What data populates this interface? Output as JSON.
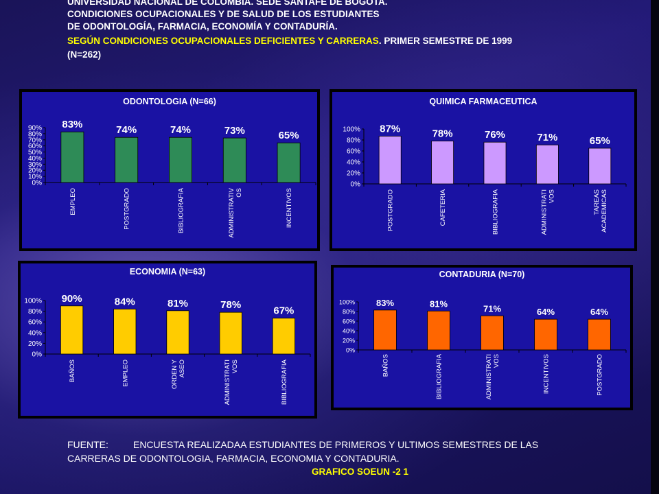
{
  "header": {
    "line1": "UNIVERSIDAD NACIONAL DE COLOMBIA. SEDE SANTAFE DE BOGOTA.",
    "line2": "CONDICIONES OCUPACIONALES Y DE SALUD DE LOS ESTUDIANTES",
    "line3": "DE ODONTOLOGÍA, FARMACIA, ECONOMÍA Y CONTADURÍA."
  },
  "subtitle": {
    "part1": "SEGÚN  CONDICIONES OCUPACIONALES DEFICIENTES Y CARRERAS",
    "part2": ". PRIMER SEMESTRE DE 1999",
    "part3": "(N=262)"
  },
  "footer": {
    "label": "FUENTE:",
    "text1": "ENCUESTA REALIZADAA ESTUDIANTES DE PRIMEROS Y ULTIMOS SEMESTRES DE LAS",
    "text2": "CARRERAS DE ODONTOLOGIA, FARMACIA, ECONOMIA Y CONTADURIA.",
    "figure": "GRAFICO SOEUN -2 1"
  },
  "colors": {
    "panel_bg": "#1a12a3",
    "odontologia": "#2e8b57",
    "quimica": "#cc99ff",
    "economia": "#ffcc00",
    "contaduria": "#ff6600"
  },
  "chart_data": [
    {
      "type": "bar",
      "title": "ODONTOLOGIA (N=66)",
      "categories": [
        [
          "EMPLEO"
        ],
        [
          "POSTGRADO"
        ],
        [
          "BIBLIOGRAFIA"
        ],
        [
          "ADMINISTRATIV",
          "OS"
        ],
        [
          "INCENTIVOS"
        ]
      ],
      "values": [
        83,
        74,
        74,
        73,
        65
      ],
      "data_labels": [
        "83%",
        "74%",
        "74%",
        "73%",
        "65%"
      ],
      "yticks": [
        "0%",
        "10%",
        "20%",
        "30%",
        "40%",
        "50%",
        "60%",
        "70%",
        "80%",
        "90%"
      ],
      "ylim": [
        0,
        90
      ],
      "color_key": "odontologia"
    },
    {
      "type": "bar",
      "title": "QUIMICA FARMACEUTICA",
      "categories": [
        [
          "POSTGRADO"
        ],
        [
          "CAFETERIA"
        ],
        [
          "BIBLIOGRAFIA"
        ],
        [
          "ADMINISTRATI",
          "VOS"
        ],
        [
          "TAREAS",
          "ACADEMICAS"
        ]
      ],
      "values": [
        87,
        78,
        76,
        71,
        65
      ],
      "data_labels": [
        "87%",
        "78%",
        "76%",
        "71%",
        "65%"
      ],
      "yticks": [
        "0%",
        "20%",
        "40%",
        "60%",
        "80%",
        "100%"
      ],
      "ylim": [
        0,
        100
      ],
      "color_key": "quimica"
    },
    {
      "type": "bar",
      "title": "ECONOMIA (N=63)",
      "categories": [
        [
          "BAÑOS"
        ],
        [
          "EMPLEO"
        ],
        [
          "ORDEN Y",
          "ASEO"
        ],
        [
          "ADMINISTRATI",
          "VOS"
        ],
        [
          "BIBLIOGRAFIA"
        ]
      ],
      "values": [
        90,
        84,
        81,
        78,
        67
      ],
      "data_labels": [
        "90%",
        "84%",
        "81%",
        "78%",
        "67%"
      ],
      "yticks": [
        "0%",
        "20%",
        "40%",
        "60%",
        "80%",
        "100%"
      ],
      "ylim": [
        0,
        100
      ],
      "color_key": "economia"
    },
    {
      "type": "bar",
      "title": "CONTADURIA (N=70)",
      "categories": [
        [
          "BAÑOS"
        ],
        [
          "BIBLIOGRAFIA"
        ],
        [
          "ADMINISTRATI",
          "VOS"
        ],
        [
          "INCENTIVOS"
        ],
        [
          "POSTGRADO"
        ]
      ],
      "values": [
        83,
        81,
        71,
        64,
        64
      ],
      "data_labels": [
        "83%",
        "81%",
        "71%",
        "64%",
        "64%"
      ],
      "yticks": [
        "0%",
        "20%",
        "40%",
        "60%",
        "80%",
        "100%"
      ],
      "ylim": [
        0,
        100
      ],
      "color_key": "contaduria"
    }
  ]
}
